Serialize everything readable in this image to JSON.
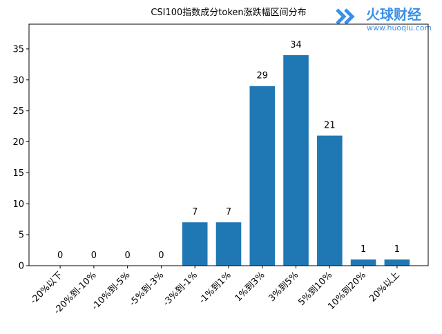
{
  "chart_data": {
    "type": "bar",
    "title": "CSI100指数成分token涨跌幅区间分布",
    "categories": [
      "-20%以下",
      "-20%到-10%",
      "-10%到-5%",
      "-5%到-3%",
      "-3%到-1%",
      "-1%到1%",
      "1%到3%",
      "3%到5%",
      "5%到10%",
      "10%到20%",
      "20%以上"
    ],
    "values": [
      0,
      0,
      0,
      0,
      7,
      7,
      29,
      34,
      21,
      1,
      1
    ],
    "color": "#1f77b4",
    "ylim": [
      0,
      39
    ],
    "yticks": [
      0,
      5,
      10,
      15,
      20,
      25,
      30,
      35
    ],
    "grid": false
  },
  "watermark": {
    "name": "火球财经",
    "url": "www.huoqiu.com"
  }
}
